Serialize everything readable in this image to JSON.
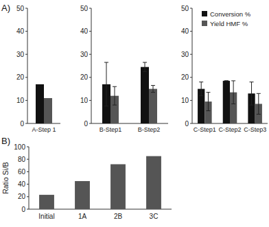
{
  "chart_data": [
    {
      "type": "bar",
      "annotation": "A)",
      "categories": [
        "A-Step 1"
      ],
      "series": [
        {
          "color": "#111111",
          "values": [
            17
          ]
        },
        {
          "color": "#555555",
          "values": [
            11
          ]
        }
      ],
      "ylim": [
        0,
        50
      ],
      "yticks": [
        0,
        10,
        20,
        30,
        40,
        50
      ]
    },
    {
      "type": "bar",
      "categories": [
        "B-Step1",
        "B-Step2"
      ],
      "series": [
        {
          "color": "#111111",
          "values": [
            17,
            24.5
          ],
          "errors": [
            9.5,
            2
          ]
        },
        {
          "color": "#555555",
          "values": [
            12,
            15
          ],
          "errors": [
            4,
            1.5
          ]
        }
      ],
      "ylim": [
        0,
        50
      ],
      "yticks": [
        0,
        10,
        20,
        30,
        40,
        50
      ]
    },
    {
      "type": "bar",
      "categories": [
        "C-Step1",
        "C-Step2",
        "C-Step3"
      ],
      "series": [
        {
          "name": "Conversion %",
          "color": "#111111",
          "values": [
            15,
            18.5,
            13
          ],
          "errors": [
            3,
            0,
            5
          ]
        },
        {
          "name": "Yield HMF %",
          "color": "#555555",
          "values": [
            9.5,
            13.5,
            8.5
          ],
          "errors": [
            4,
            5,
            4.5
          ]
        }
      ],
      "ylim": [
        0,
        50
      ],
      "yticks": [
        0,
        10,
        20,
        30,
        40,
        50
      ],
      "legend": "upper right"
    },
    {
      "type": "bar",
      "annotation": "B)",
      "categories": [
        "Initial",
        "1A",
        "2B",
        "3C"
      ],
      "values": [
        23,
        45,
        72,
        85
      ],
      "color": "#555555",
      "ylabel": "Ratio Si/B",
      "ylim": [
        0,
        100
      ],
      "yticks": [
        0,
        20,
        40,
        60,
        80,
        100
      ]
    }
  ]
}
